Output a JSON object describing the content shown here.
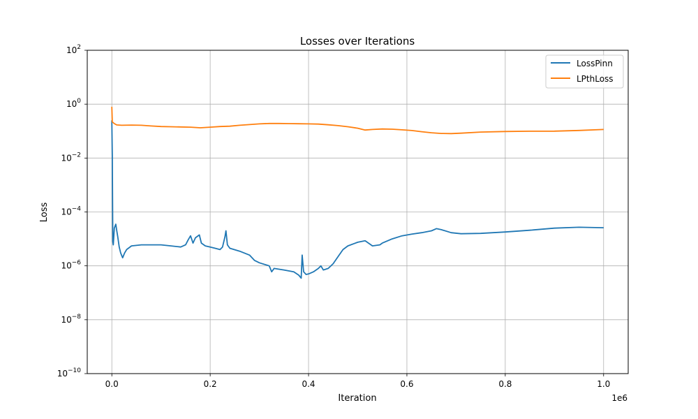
{
  "chart_data": {
    "type": "line",
    "title": "Losses over Iterations",
    "xlabel": "Iteration",
    "ylabel": "Loss",
    "x_offset_label": "1e6",
    "xlim": [
      -0.05,
      1.05
    ],
    "ylim_exp": [
      -10,
      2
    ],
    "y_scale": "log",
    "grid": true,
    "legend_position": "top-right",
    "x_ticks": [
      {
        "value": 0.0,
        "label": "0.0"
      },
      {
        "value": 0.2,
        "label": "0.2"
      },
      {
        "value": 0.4,
        "label": "0.4"
      },
      {
        "value": 0.6,
        "label": "0.6"
      },
      {
        "value": 0.8,
        "label": "0.8"
      },
      {
        "value": 1.0,
        "label": "1.0"
      }
    ],
    "y_ticks": [
      {
        "exp": 2,
        "base": "10",
        "sup": "2"
      },
      {
        "exp": 0,
        "base": "10",
        "sup": "0"
      },
      {
        "exp": -2,
        "base": "10",
        "sup": "−2"
      },
      {
        "exp": -4,
        "base": "10",
        "sup": "−4"
      },
      {
        "exp": -6,
        "base": "10",
        "sup": "−6"
      },
      {
        "exp": -8,
        "base": "10",
        "sup": "−8"
      },
      {
        "exp": -10,
        "base": "10",
        "sup": "−10"
      }
    ],
    "series": [
      {
        "name": "LossPinn",
        "color": "#1f77b4",
        "points": [
          [
            0.0,
            0.25
          ],
          [
            0.001,
            0.012
          ],
          [
            0.002,
            8e-06
          ],
          [
            0.003,
            6e-06
          ],
          [
            0.005,
            2.5e-05
          ],
          [
            0.008,
            3.5e-05
          ],
          [
            0.01,
            2e-05
          ],
          [
            0.012,
            1.2e-05
          ],
          [
            0.015,
            5e-06
          ],
          [
            0.018,
            3e-06
          ],
          [
            0.022,
            2e-06
          ],
          [
            0.026,
            3e-06
          ],
          [
            0.03,
            4e-06
          ],
          [
            0.04,
            5.5e-06
          ],
          [
            0.06,
            6e-06
          ],
          [
            0.08,
            6e-06
          ],
          [
            0.1,
            6e-06
          ],
          [
            0.12,
            5.5e-06
          ],
          [
            0.14,
            5e-06
          ],
          [
            0.15,
            6e-06
          ],
          [
            0.155,
            9e-06
          ],
          [
            0.16,
            1.3e-05
          ],
          [
            0.165,
            7e-06
          ],
          [
            0.17,
            1.1e-05
          ],
          [
            0.178,
            1.4e-05
          ],
          [
            0.182,
            7e-06
          ],
          [
            0.19,
            5.5e-06
          ],
          [
            0.2,
            5e-06
          ],
          [
            0.21,
            4.5e-06
          ],
          [
            0.22,
            4e-06
          ],
          [
            0.225,
            5e-06
          ],
          [
            0.23,
            1.2e-05
          ],
          [
            0.232,
            2e-05
          ],
          [
            0.235,
            6e-06
          ],
          [
            0.24,
            4.5e-06
          ],
          [
            0.26,
            3.5e-06
          ],
          [
            0.28,
            2.5e-06
          ],
          [
            0.29,
            1.6e-06
          ],
          [
            0.3,
            1.3e-06
          ],
          [
            0.32,
            1e-06
          ],
          [
            0.325,
            6e-07
          ],
          [
            0.33,
            8e-07
          ],
          [
            0.35,
            7e-07
          ],
          [
            0.37,
            6e-07
          ],
          [
            0.38,
            4.5e-07
          ],
          [
            0.385,
            3.5e-07
          ],
          [
            0.387,
            2.5e-06
          ],
          [
            0.39,
            6e-07
          ],
          [
            0.395,
            4.8e-07
          ],
          [
            0.4,
            5e-07
          ],
          [
            0.41,
            6e-07
          ],
          [
            0.42,
            8e-07
          ],
          [
            0.425,
            1e-06
          ],
          [
            0.43,
            7e-07
          ],
          [
            0.44,
            8e-07
          ],
          [
            0.45,
            1.2e-06
          ],
          [
            0.46,
            2.2e-06
          ],
          [
            0.47,
            4e-06
          ],
          [
            0.48,
            5.5e-06
          ],
          [
            0.5,
            7.5e-06
          ],
          [
            0.515,
            8.5e-06
          ],
          [
            0.53,
            5.5e-06
          ],
          [
            0.545,
            6e-06
          ],
          [
            0.55,
            7e-06
          ],
          [
            0.57,
            1e-05
          ],
          [
            0.59,
            1.3e-05
          ],
          [
            0.61,
            1.5e-05
          ],
          [
            0.63,
            1.7e-05
          ],
          [
            0.65,
            2e-05
          ],
          [
            0.66,
            2.4e-05
          ],
          [
            0.67,
            2.2e-05
          ],
          [
            0.69,
            1.7e-05
          ],
          [
            0.71,
            1.55e-05
          ],
          [
            0.75,
            1.6e-05
          ],
          [
            0.8,
            1.8e-05
          ],
          [
            0.85,
            2.1e-05
          ],
          [
            0.9,
            2.5e-05
          ],
          [
            0.95,
            2.7e-05
          ],
          [
            1.0,
            2.6e-05
          ]
        ]
      },
      {
        "name": "LPthLoss",
        "color": "#ff7f0e",
        "points": [
          [
            0.0,
            0.8
          ],
          [
            0.001,
            0.22
          ],
          [
            0.005,
            0.19
          ],
          [
            0.01,
            0.17
          ],
          [
            0.02,
            0.165
          ],
          [
            0.04,
            0.168
          ],
          [
            0.06,
            0.165
          ],
          [
            0.08,
            0.155
          ],
          [
            0.1,
            0.148
          ],
          [
            0.12,
            0.145
          ],
          [
            0.14,
            0.143
          ],
          [
            0.16,
            0.14
          ],
          [
            0.18,
            0.133
          ],
          [
            0.2,
            0.14
          ],
          [
            0.22,
            0.148
          ],
          [
            0.24,
            0.152
          ],
          [
            0.26,
            0.165
          ],
          [
            0.28,
            0.175
          ],
          [
            0.3,
            0.185
          ],
          [
            0.32,
            0.192
          ],
          [
            0.34,
            0.192
          ],
          [
            0.36,
            0.19
          ],
          [
            0.38,
            0.188
          ],
          [
            0.4,
            0.185
          ],
          [
            0.42,
            0.182
          ],
          [
            0.44,
            0.172
          ],
          [
            0.46,
            0.16
          ],
          [
            0.48,
            0.145
          ],
          [
            0.5,
            0.128
          ],
          [
            0.515,
            0.11
          ],
          [
            0.53,
            0.115
          ],
          [
            0.55,
            0.12
          ],
          [
            0.57,
            0.118
          ],
          [
            0.59,
            0.112
          ],
          [
            0.61,
            0.105
          ],
          [
            0.63,
            0.095
          ],
          [
            0.65,
            0.087
          ],
          [
            0.67,
            0.082
          ],
          [
            0.69,
            0.081
          ],
          [
            0.71,
            0.084
          ],
          [
            0.75,
            0.092
          ],
          [
            0.8,
            0.097
          ],
          [
            0.85,
            0.099
          ],
          [
            0.9,
            0.1
          ],
          [
            0.95,
            0.106
          ],
          [
            1.0,
            0.115
          ]
        ]
      }
    ]
  }
}
